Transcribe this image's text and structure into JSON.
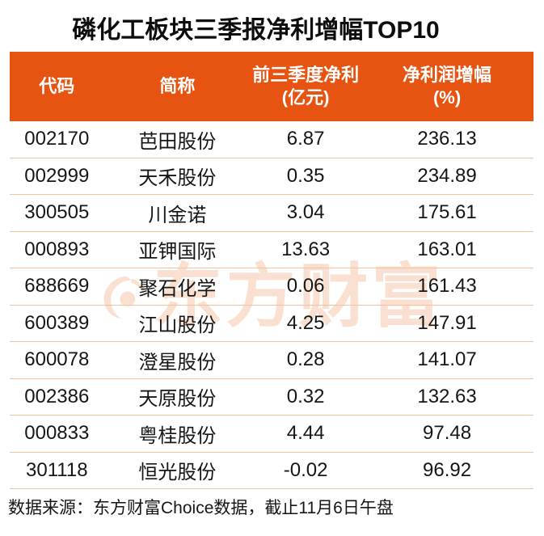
{
  "title": "磷化工板块三季报净利增幅TOP10",
  "colors": {
    "header_bg": "#E75310",
    "header_text": "#FFFFFF",
    "row_divider": "#F5C29C",
    "body_text": "#161616",
    "watermark": "#F9E0D0"
  },
  "table": {
    "headers": {
      "code": "代码",
      "name": "简称",
      "profit_line1": "前三季度净利",
      "profit_line2": "(亿元)",
      "growth_line1": "净利润增幅",
      "growth_line2": "(%)"
    },
    "rows": [
      {
        "code": "002170",
        "name": "芭田股份",
        "profit": "6.87",
        "growth": "236.13"
      },
      {
        "code": "002999",
        "name": "天禾股份",
        "profit": "0.35",
        "growth": "234.89"
      },
      {
        "code": "300505",
        "name": "川金诺",
        "profit": "3.04",
        "growth": "175.61"
      },
      {
        "code": "000893",
        "name": "亚钾国际",
        "profit": "13.63",
        "growth": "163.01"
      },
      {
        "code": "688669",
        "name": "聚石化学",
        "profit": "0.06",
        "growth": "161.43"
      },
      {
        "code": "600389",
        "name": "江山股份",
        "profit": "4.25",
        "growth": "147.91"
      },
      {
        "code": "600078",
        "name": "澄星股份",
        "profit": "0.28",
        "growth": "141.07"
      },
      {
        "code": "002386",
        "name": "天原股份",
        "profit": "0.32",
        "growth": "132.63"
      },
      {
        "code": "000833",
        "name": "粤桂股份",
        "profit": "4.44",
        "growth": "97.48"
      },
      {
        "code": "301118",
        "name": "恒光股份",
        "profit": "-0.02",
        "growth": "96.92"
      }
    ]
  },
  "watermark": {
    "text": "东方财富"
  },
  "footer": {
    "source_note": "数据来源：东方财富Choice数据，截止11月6日午盘"
  },
  "chart_data": {
    "type": "table",
    "title": "磷化工板块三季报净利增幅TOP10",
    "columns": [
      "代码",
      "简称",
      "前三季度净利(亿元)",
      "净利润增幅(%)"
    ],
    "rows": [
      [
        "002170",
        "芭田股份",
        6.87,
        236.13
      ],
      [
        "002999",
        "天禾股份",
        0.35,
        234.89
      ],
      [
        "300505",
        "川金诺",
        3.04,
        175.61
      ],
      [
        "000893",
        "亚钾国际",
        13.63,
        163.01
      ],
      [
        "688669",
        "聚石化学",
        0.06,
        161.43
      ],
      [
        "600389",
        "江山股份",
        4.25,
        147.91
      ],
      [
        "600078",
        "澄星股份",
        0.28,
        141.07
      ],
      [
        "002386",
        "天原股份",
        0.32,
        132.63
      ],
      [
        "000833",
        "粤桂股份",
        4.44,
        97.48
      ],
      [
        "301118",
        "恒光股份",
        -0.02,
        96.92
      ]
    ],
    "source_note": "数据来源：东方财富Choice数据，截止11月6日午盘"
  }
}
